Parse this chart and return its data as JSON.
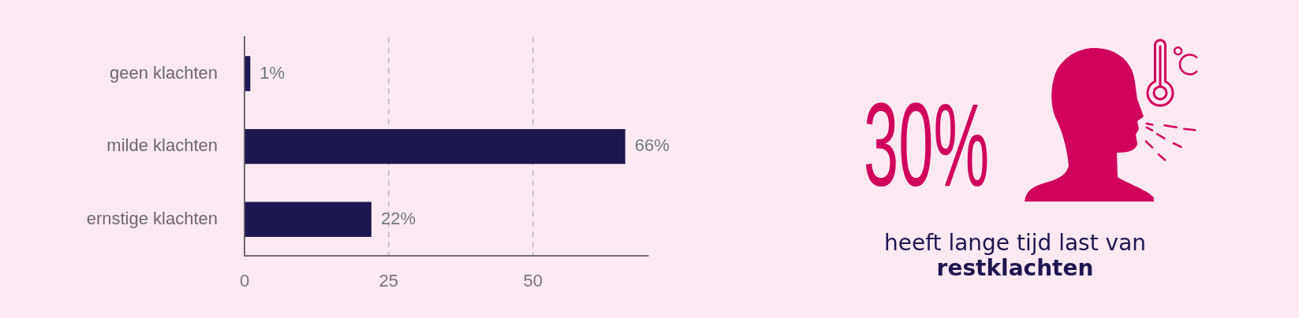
{
  "chart_data": [
    {
      "type": "bar",
      "orientation": "horizontal",
      "categories": [
        "geen klachten",
        "milde klachten",
        "ernstige klachten"
      ],
      "values": [
        1,
        66,
        22
      ],
      "color": "#1e1650",
      "value_labels": [
        "1%",
        "66%",
        "22%"
      ],
      "xlim": [
        0,
        70
      ],
      "xticks": [
        0,
        25,
        50
      ],
      "grid": "x"
    },
    {
      "type": "other",
      "title": "30%",
      "annotations": [
        "heeft lange tijd last van",
        "restklachten"
      ]
    }
  ]
}
